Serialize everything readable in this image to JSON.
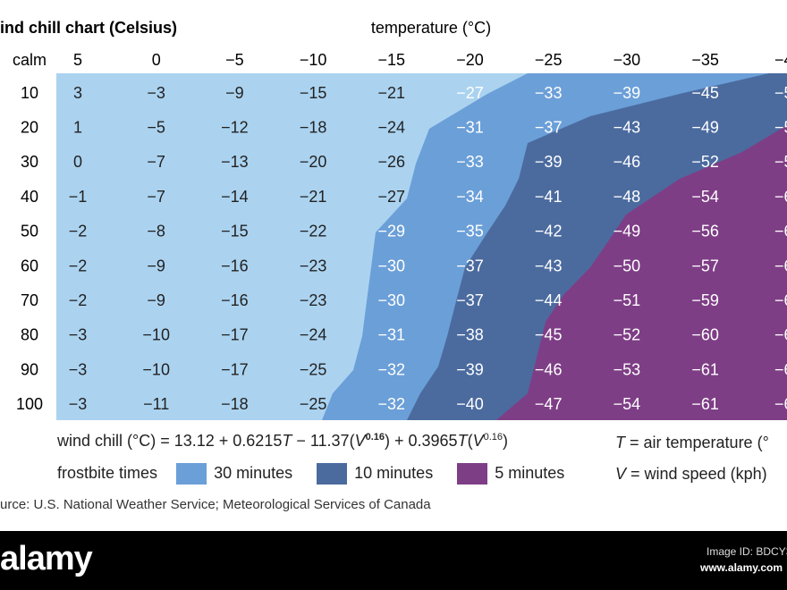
{
  "title": "ind chill chart (Celsius)",
  "table": {
    "header_label": "temperature (°C)",
    "columns": [
      "calm",
      "5",
      "0",
      "−5",
      "−10",
      "−15",
      "−20",
      "−25",
      "−30",
      "−35",
      "−4"
    ],
    "rows": [
      {
        "label": "10",
        "cells": [
          "3",
          "−3",
          "−9",
          "−15",
          "−21",
          "−27",
          "−33",
          "−39",
          "−45",
          "−5"
        ]
      },
      {
        "label": "20",
        "cells": [
          "1",
          "−5",
          "−12",
          "−18",
          "−24",
          "−31",
          "−37",
          "−43",
          "−49",
          "−5"
        ]
      },
      {
        "label": "30",
        "cells": [
          "0",
          "−7",
          "−13",
          "−20",
          "−26",
          "−33",
          "−39",
          "−46",
          "−52",
          "−5"
        ]
      },
      {
        "label": "40",
        "cells": [
          "−1",
          "−7",
          "−14",
          "−21",
          "−27",
          "−34",
          "−41",
          "−48",
          "−54",
          "−6"
        ]
      },
      {
        "label": "50",
        "cells": [
          "−2",
          "−8",
          "−15",
          "−22",
          "−29",
          "−35",
          "−42",
          "−49",
          "−56",
          "−6"
        ]
      },
      {
        "label": "60",
        "cells": [
          "−2",
          "−9",
          "−16",
          "−23",
          "−30",
          "−37",
          "−43",
          "−50",
          "−57",
          "−6"
        ]
      },
      {
        "label": "70",
        "cells": [
          "−2",
          "−9",
          "−16",
          "−23",
          "−30",
          "−37",
          "−44",
          "−51",
          "−59",
          "−6"
        ]
      },
      {
        "label": "80",
        "cells": [
          "−3",
          "−10",
          "−17",
          "−24",
          "−31",
          "−38",
          "−45",
          "−52",
          "−60",
          "−6"
        ]
      },
      {
        "label": "90",
        "cells": [
          "−3",
          "−10",
          "−17",
          "−25",
          "−32",
          "−39",
          "−46",
          "−53",
          "−61",
          "−6"
        ]
      },
      {
        "label": "100",
        "cells": [
          "−3",
          "−11",
          "−18",
          "−25",
          "−32",
          "−40",
          "−47",
          "−54",
          "−61",
          "−6"
        ]
      }
    ]
  },
  "formula": {
    "lhs": "wind chill (°C) = 13.12 + 0.6215",
    "t1": "T",
    "mid": " − 11.37(",
    "v1": "V",
    "exp1": "0.16",
    "mid2": ") + 0.3965",
    "t2": "T",
    "open": "(",
    "v2": "V",
    "exp2": "0.16",
    "close": ")"
  },
  "legend": {
    "label": "frostbite times",
    "items": [
      "30 minutes",
      "10 minutes",
      "5 minutes"
    ]
  },
  "notes": {
    "t_symbol": "T",
    "t_text": " = air temperature (°",
    "v_symbol": "V",
    "v_text": " = wind speed (kph)"
  },
  "source": "urce: U.S. National Weather Service; Meteorological Services of Canada",
  "footer": {
    "brand": "alamy",
    "image_id": "Image ID: BDCY3",
    "url": "www.alamy.com"
  }
}
